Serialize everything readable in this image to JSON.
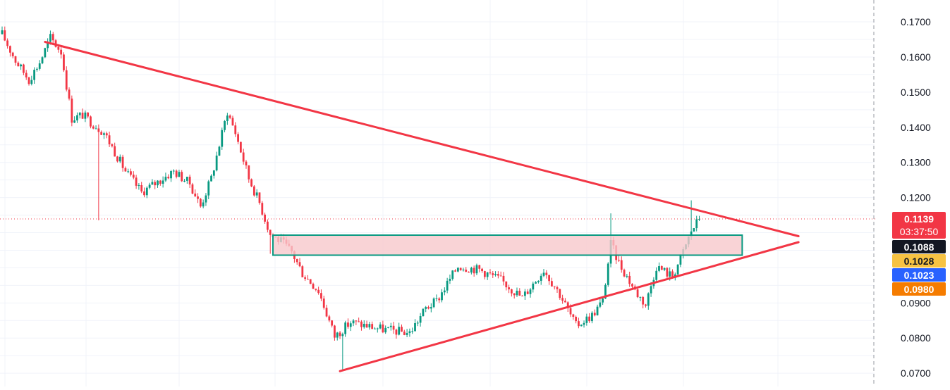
{
  "chart_data": {
    "type": "candlestick",
    "y_axis": {
      "ticks": [
        "0.1700",
        "0.1600",
        "0.1500",
        "0.1400",
        "0.1300",
        "0.1200",
        "0.0900",
        "0.0800",
        "0.0700"
      ],
      "range": [
        0.0655,
        0.1745
      ],
      "position": "right"
    },
    "grid": true,
    "current_price": {
      "value": 0.1139,
      "label": "0.1139",
      "countdown": "03:37:50",
      "color": "#f23645"
    },
    "price_badges": [
      {
        "label": "0.1088",
        "value": 0.1088,
        "color": "#131722",
        "text_color": "#ffffff"
      },
      {
        "label": "0.1028",
        "value": 0.1028,
        "color": "#f7c343",
        "text_color": "#131722"
      },
      {
        "label": "0.1023",
        "value": 0.1023,
        "color": "#2962ff",
        "text_color": "#ffffff"
      },
      {
        "label": "0.0980",
        "value": 0.098,
        "color": "#f57c00",
        "text_color": "#ffffff"
      }
    ],
    "up_color": "#089981",
    "down_color": "#f23645",
    "candle_count": 260,
    "price_path_anchors": [
      [
        0,
        0.1665
      ],
      [
        5,
        0.159
      ],
      [
        10,
        0.1535
      ],
      [
        14,
        0.1585
      ],
      [
        18,
        0.1655
      ],
      [
        22,
        0.1615
      ],
      [
        26,
        0.1425
      ],
      [
        30,
        0.1435
      ],
      [
        38,
        0.1385
      ],
      [
        46,
        0.1275
      ],
      [
        52,
        0.1215
      ],
      [
        58,
        0.1245
      ],
      [
        64,
        0.1275
      ],
      [
        70,
        0.124
      ],
      [
        74,
        0.1175
      ],
      [
        78,
        0.1255
      ],
      [
        84,
        0.1445
      ],
      [
        87,
        0.1385
      ],
      [
        92,
        0.1255
      ],
      [
        96,
        0.1185
      ],
      [
        100,
        0.1095
      ],
      [
        104,
        0.1075
      ],
      [
        108,
        0.1045
      ],
      [
        112,
        0.0985
      ],
      [
        118,
        0.0935
      ],
      [
        124,
        0.0805
      ],
      [
        130,
        0.0845
      ],
      [
        142,
        0.0825
      ],
      [
        152,
        0.0815
      ],
      [
        158,
        0.0885
      ],
      [
        162,
        0.0905
      ],
      [
        170,
        0.1005
      ],
      [
        178,
        0.0995
      ],
      [
        186,
        0.0965
      ],
      [
        194,
        0.0915
      ],
      [
        202,
        0.0995
      ],
      [
        208,
        0.0925
      ],
      [
        214,
        0.0835
      ],
      [
        220,
        0.0865
      ],
      [
        224,
        0.0905
      ],
      [
        227,
        0.1068
      ],
      [
        230,
        0.1015
      ],
      [
        236,
        0.0935
      ],
      [
        240,
        0.0895
      ],
      [
        244,
        0.1005
      ],
      [
        250,
        0.0975
      ],
      [
        254,
        0.1045
      ],
      [
        257,
        0.1105
      ],
      [
        260,
        0.1139
      ]
    ],
    "annotations": {
      "descending_trendline": {
        "from": [
          16,
          0.1643
        ],
        "to": [
          297,
          0.109
        ],
        "color": "#f23645"
      },
      "ascending_trendline": {
        "from": [
          126,
          0.0706
        ],
        "to": [
          297,
          0.1073
        ],
        "color": "#f23645"
      },
      "resistance_zone": {
        "price_top": 0.1093,
        "price_bottom": 0.1036,
        "from": [
          101
        ],
        "to": [
          276
        ],
        "fill": "#f8c8cc",
        "border": "#089981"
      }
    }
  }
}
